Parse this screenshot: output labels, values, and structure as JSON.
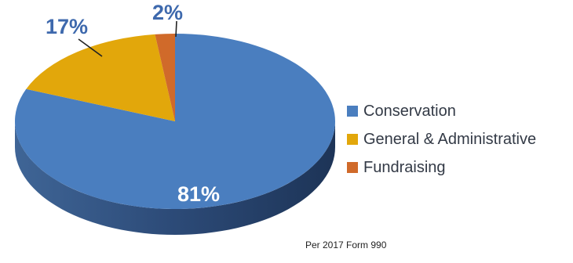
{
  "chart_data": {
    "type": "pie",
    "style": "3d",
    "slices": [
      {
        "label": "Conservation",
        "value": 81,
        "display": "81%",
        "color": "#4a7ebf"
      },
      {
        "label": "General & Administrative",
        "value": 17,
        "display": "17%",
        "color": "#e2a70b"
      },
      {
        "label": "Fundraising",
        "value": 2,
        "display": "2%",
        "color": "#d06a2a"
      }
    ],
    "label_color": "#3e69ad",
    "inside_label_color": "#ffffff",
    "legend_position": "right"
  },
  "note": "Per 2017 Form 990"
}
